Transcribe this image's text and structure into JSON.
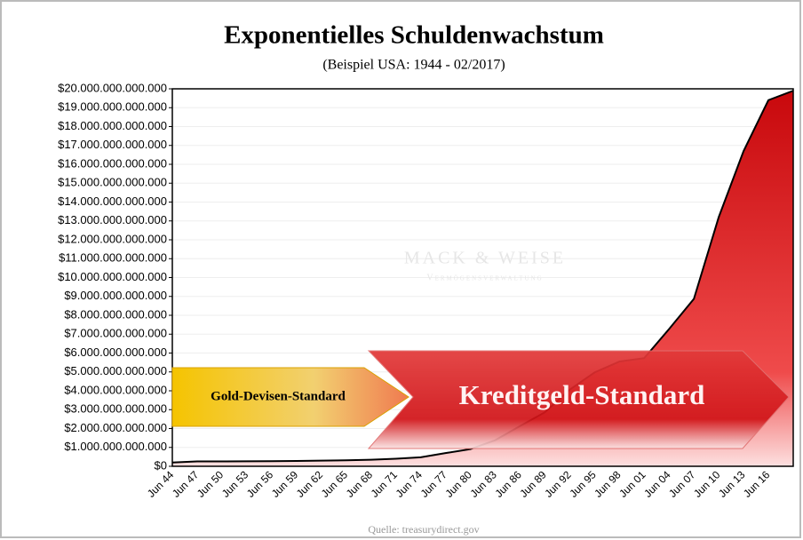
{
  "chart_data": {
    "type": "area",
    "title": "Exponentielles Schuldenwachstum",
    "subtitle": "(Beispiel USA: 1944 - 02/2017)",
    "categories": [
      "Jun 44",
      "Jun 47",
      "Jun 50",
      "Jun 53",
      "Jun 56",
      "Jun 59",
      "Jun 62",
      "Jun 65",
      "Jun 68",
      "Jun 71",
      "Jun 74",
      "Jun 77",
      "Jun 80",
      "Jun 83",
      "Jun 86",
      "Jun 89",
      "Jun 92",
      "Jun 95",
      "Jun 98",
      "Jun 01",
      "Jun 04",
      "Jun 07",
      "Jun 10",
      "Jun 13",
      "Jun 16",
      null
    ],
    "values": [
      201000000000,
      258000000000,
      257000000000,
      266000000000,
      273000000000,
      285000000000,
      298000000000,
      317000000000,
      348000000000,
      398000000000,
      475000000000,
      699000000000,
      908000000000,
      1380000000000,
      2130000000000,
      2860000000000,
      4060000000000,
      4970000000000,
      5550000000000,
      5730000000000,
      7270000000000,
      8870000000000,
      13200000000000,
      16700000000000,
      19400000000000,
      19900000000000
    ],
    "color": "#d9171b",
    "ylim": [
      0,
      20000000000000
    ],
    "yticks": [
      {
        "value": 0,
        "label": "$0"
      },
      {
        "value": 1000000000000,
        "label": "$1.000.000.000.000"
      },
      {
        "value": 2000000000000,
        "label": "$2.000.000.000.000"
      },
      {
        "value": 3000000000000,
        "label": "$3.000.000.000.000"
      },
      {
        "value": 4000000000000,
        "label": "$4.000.000.000.000"
      },
      {
        "value": 5000000000000,
        "label": "$5.000.000.000.000"
      },
      {
        "value": 6000000000000,
        "label": "$6.000.000.000.000"
      },
      {
        "value": 7000000000000,
        "label": "$7.000.000.000.000"
      },
      {
        "value": 8000000000000,
        "label": "$8.000.000.000.000"
      },
      {
        "value": 9000000000000,
        "label": "$9.000.000.000.000"
      },
      {
        "value": 10000000000000,
        "label": "$10.000.000.000.000"
      },
      {
        "value": 11000000000000,
        "label": "$11.000.000.000.000"
      },
      {
        "value": 12000000000000,
        "label": "$12.000.000.000.000"
      },
      {
        "value": 13000000000000,
        "label": "$13.000.000.000.000"
      },
      {
        "value": 14000000000000,
        "label": "$14.000.000.000.000"
      },
      {
        "value": 15000000000000,
        "label": "$15.000.000.000.000"
      },
      {
        "value": 16000000000000,
        "label": "$16.000.000.000.000"
      },
      {
        "value": 17000000000000,
        "label": "$17.000.000.000.000"
      },
      {
        "value": 18000000000000,
        "label": "$18.000.000.000.000"
      },
      {
        "value": 19000000000000,
        "label": "$19.000.000.000.000"
      },
      {
        "value": 20000000000000,
        "label": "$20.000.000.000.000"
      }
    ],
    "grid": true,
    "annotations": {
      "gold": "Gold-Devisen-Standard",
      "credit": "Kreditgeld-Standard",
      "watermark": "MACK & WEISE",
      "watermark_sub": "Vermögensverwaltung",
      "source": "Quelle: treasurydirect.gov"
    }
  }
}
